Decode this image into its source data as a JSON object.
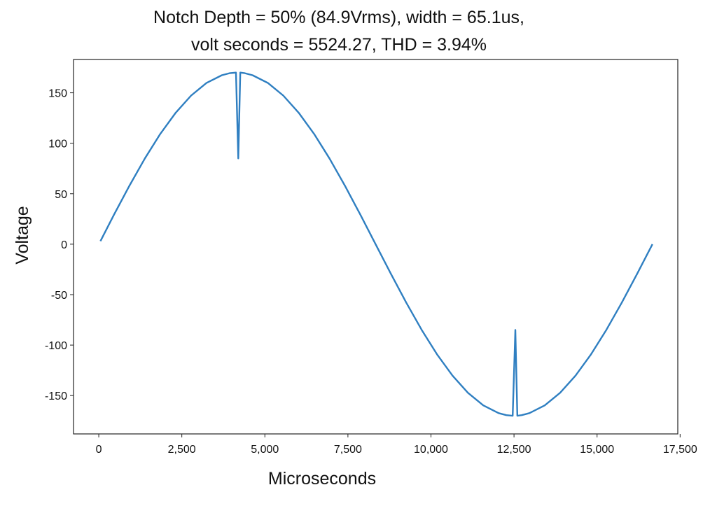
{
  "chart_data": {
    "type": "line",
    "title": [
      "Notch Depth = 50% (84.9Vrms), width = 65.1us,",
      "volt seconds = 5524.27, THD = 3.94%"
    ],
    "x_label": "Microseconds",
    "y_label": "Voltage",
    "x": [
      50,
      463,
      926,
      1389,
      1852,
      2315,
      2778,
      3241,
      3704,
      3935,
      4130,
      4200,
      4260,
      4398,
      4630,
      5093,
      5556,
      6019,
      6481,
      6944,
      7407,
      7870,
      8333,
      8796,
      9259,
      9722,
      10185,
      10648,
      11111,
      11574,
      12037,
      12269,
      12460,
      12540,
      12600,
      12731,
      12963,
      13426,
      13889,
      14352,
      14815,
      15278,
      15741,
      16204,
      16667
    ],
    "series": [
      {
        "color": "#2f7fc1",
        "values": [
          3,
          29.5,
          58.1,
          85,
          109.3,
          130.2,
          147.2,
          159.7,
          167.4,
          169.4,
          170,
          85,
          170,
          169.4,
          167.4,
          159.7,
          147.2,
          130.2,
          109.3,
          85,
          58.1,
          29.5,
          0,
          -29.5,
          -58.1,
          -85,
          -109.3,
          -130.2,
          -147.2,
          -159.7,
          -167.4,
          -169.4,
          -170,
          -85,
          -170,
          -169.4,
          -167.4,
          -159.7,
          -147.2,
          -130.2,
          -109.3,
          -85,
          -58.1,
          -29.5,
          0
        ]
      }
    ],
    "xlim": [
      -760,
      17430
    ],
    "xticks": [
      0,
      {
        "value": 2500,
        "label": "2,500"
      },
      {
        "value": 5000,
        "label": "5,000"
      },
      {
        "value": 7500,
        "label": "7,500"
      },
      {
        "value": 10000,
        "label": "10,000"
      },
      {
        "value": 12500,
        "label": "12,500"
      },
      {
        "value": 15000,
        "label": "15,000"
      },
      {
        "value": 17500,
        "label": "17,500"
      }
    ],
    "ylim": [
      -188,
      183
    ],
    "yticks": [
      -150,
      -100,
      -50,
      0,
      50,
      100,
      150
    ],
    "grid": false
  }
}
